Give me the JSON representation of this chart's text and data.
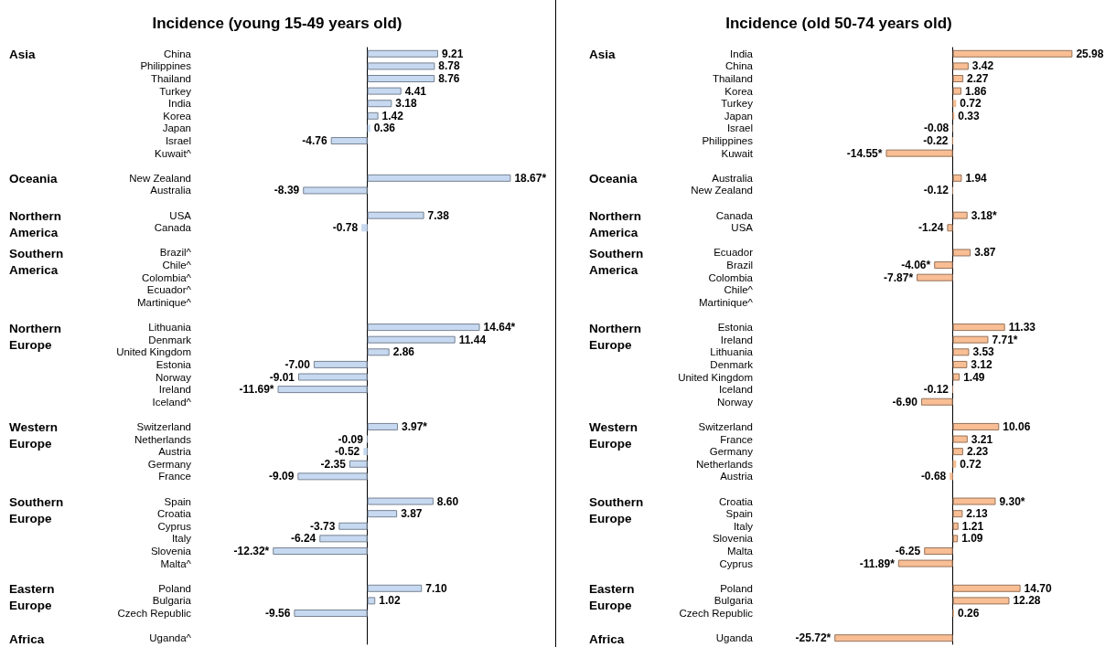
{
  "chart_data": [
    {
      "type": "bar",
      "orientation": "horizontal",
      "title": "Incidence (young 15-49 years old)",
      "color": "#c6d9f1",
      "categories": [
        "China",
        "Philippines",
        "Thailand",
        "Turkey",
        "India",
        "Korea",
        "Japan",
        "Israel",
        "Kuwait^",
        null,
        "New Zealand",
        "Australia",
        null,
        "USA",
        "Canada",
        null,
        "Brazil^",
        "Chile^",
        "Colombia^",
        "Ecuador^",
        "Martinique^",
        null,
        "Lithuania",
        "Denmark",
        "United Kingdom",
        "Estonia",
        "Norway",
        "Ireland",
        "Iceland^",
        null,
        "Switzerland",
        "Netherlands",
        "Austria",
        "Germany",
        "France",
        null,
        "Spain",
        "Croatia",
        "Cyprus",
        "Italy",
        "Slovenia",
        "Malta^",
        null,
        "Poland",
        "Bulgaria",
        "Czech Republic",
        null,
        "Uganda^"
      ],
      "values": [
        9.21,
        8.78,
        8.76,
        4.41,
        3.18,
        1.42,
        0.36,
        -4.76,
        null,
        null,
        18.67,
        -8.39,
        null,
        7.38,
        -0.78,
        null,
        null,
        null,
        null,
        null,
        null,
        null,
        14.64,
        11.44,
        2.86,
        -7.0,
        -9.01,
        -11.69,
        null,
        null,
        3.97,
        -0.09,
        -0.52,
        -2.35,
        -9.09,
        null,
        8.6,
        3.87,
        -3.73,
        -6.24,
        -12.32,
        null,
        null,
        7.1,
        1.02,
        -9.56,
        null,
        null
      ],
      "value_labels": [
        "9.21",
        "8.78",
        "8.76",
        "4.41",
        "3.18",
        "1.42",
        "0.36",
        "-4.76",
        null,
        null,
        "18.67*",
        "-8.39",
        null,
        "7.38",
        "-0.78",
        null,
        null,
        null,
        null,
        null,
        null,
        null,
        "14.64*",
        "11.44",
        "2.86",
        "-7.00",
        "-9.01",
        "-11.69*",
        null,
        null,
        "3.97*",
        "-0.09",
        "-0.52",
        "-2.35",
        "-9.09",
        null,
        "8.60",
        "3.87",
        "-3.73",
        "-6.24",
        "-12.32*",
        null,
        null,
        "7.10",
        "1.02",
        "-9.56",
        null,
        null
      ],
      "annotations": [
        "Asia",
        "Oceania",
        "Northern America",
        "Southern America",
        "Northern Europe",
        "Western Europe",
        "Southern Europe",
        "Eastern Europe",
        "Africa"
      ]
    },
    {
      "type": "bar",
      "orientation": "horizontal",
      "title": "Incidence (old 50-74 years old)",
      "color": "#f9be94",
      "categories": [
        "India",
        "China",
        "Thailand",
        "Korea",
        "Turkey",
        "Japan",
        "Israel",
        "Philippines",
        "Kuwait",
        null,
        "Australia",
        "New Zealand",
        null,
        "Canada",
        "USA",
        null,
        "Ecuador",
        "Brazil",
        "Colombia",
        "Chile^",
        "Martinique^",
        null,
        "Estonia",
        "Ireland",
        "Lithuania",
        "Denmark",
        "United Kingdom",
        "Iceland",
        "Norway",
        null,
        "Switzerland",
        "France",
        "Germany",
        "Netherlands",
        "Austria",
        null,
        "Croatia",
        "Spain",
        "Italy",
        "Slovenia",
        "Malta",
        "Cyprus",
        null,
        "Poland",
        "Bulgaria",
        "Czech Republic",
        null,
        "Uganda"
      ],
      "values": [
        25.98,
        3.42,
        2.27,
        1.86,
        0.72,
        0.33,
        -0.08,
        -0.22,
        -14.55,
        null,
        1.94,
        -0.12,
        null,
        3.18,
        -1.24,
        null,
        3.87,
        -4.06,
        -7.87,
        null,
        null,
        null,
        11.33,
        7.71,
        3.53,
        3.12,
        1.49,
        -0.12,
        -6.9,
        null,
        10.06,
        3.21,
        2.23,
        0.72,
        -0.68,
        null,
        9.3,
        2.13,
        1.21,
        1.09,
        -6.25,
        -11.89,
        null,
        14.7,
        12.28,
        0.26,
        null,
        -25.72
      ],
      "value_labels": [
        "25.98",
        "3.42",
        "2.27",
        "1.86",
        "0.72",
        "0.33",
        "-0.08",
        "-0.22",
        "-14.55*",
        null,
        "1.94",
        "-0.12",
        null,
        "3.18*",
        "-1.24",
        null,
        "3.87",
        "-4.06*",
        "-7.87*",
        null,
        null,
        null,
        "11.33",
        "7.71*",
        "3.53",
        "3.12",
        "1.49",
        "-0.12",
        "-6.90",
        null,
        "10.06",
        "3.21",
        "2.23",
        "0.72",
        "-0.68",
        null,
        "9.30*",
        "2.13",
        "1.21",
        "1.09",
        "-6.25",
        "-11.89*",
        null,
        "14.70",
        "12.28",
        "0.26",
        null,
        "-25.72*"
      ],
      "annotations": [
        "Asia",
        "Oceania",
        "Northern America",
        "Southern America",
        "Northern Europe",
        "Western Europe",
        "Southern Europe",
        "Eastern Europe",
        "Africa"
      ]
    }
  ]
}
